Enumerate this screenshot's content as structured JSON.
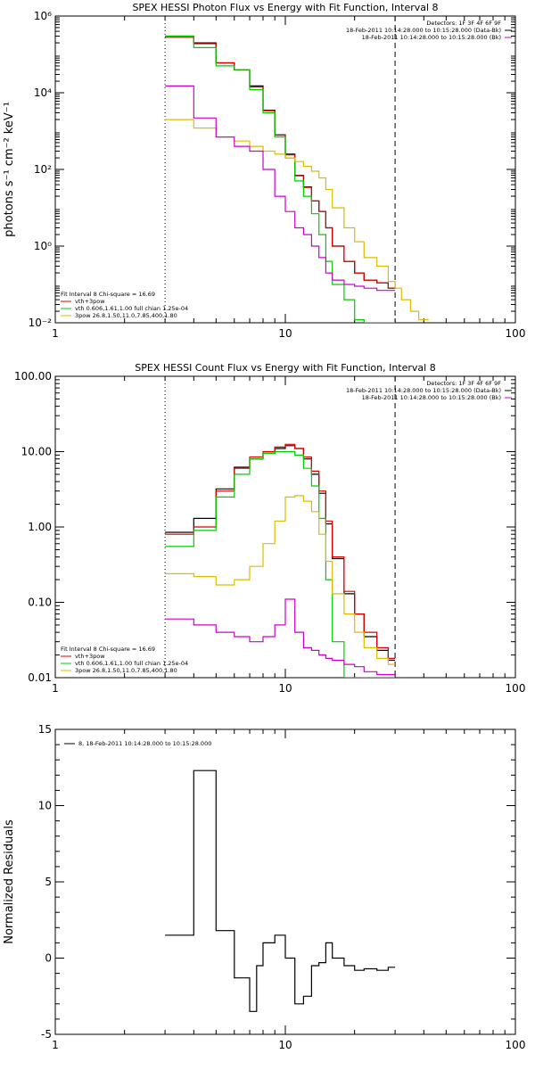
{
  "chart_data": [
    {
      "type": "line",
      "title": "SPEX HESSI Photon Flux vs Energy with Fit Function, Interval 8",
      "ylabel": "photons s⁻¹ cm⁻² keV⁻¹",
      "xlabel": "",
      "xscale": "log",
      "yscale": "log",
      "xlim": [
        1,
        100
      ],
      "ylim": [
        0.01,
        1000000
      ],
      "xticks": [
        {
          "v": 1,
          "label": "1"
        },
        {
          "v": 10,
          "label": "10"
        },
        {
          "v": 100,
          "label": "100"
        }
      ],
      "yticks": [
        {
          "v": 0.01,
          "label": "10⁻²"
        },
        {
          "v": 1,
          "label": "10⁰"
        },
        {
          "v": 100,
          "label": "10²"
        },
        {
          "v": 10000,
          "label": "10⁴"
        },
        {
          "v": 1000000,
          "label": "10⁶"
        }
      ],
      "vlines": [
        {
          "x": 3,
          "style": "dotted"
        },
        {
          "x": 30,
          "style": "dashed"
        }
      ],
      "legend_topright": {
        "lines": [
          {
            "text": "Detectors: 1F 3F 4F 6F 9F",
            "color": "#000000"
          },
          {
            "text": "18-Feb-2011 10:14:28.000 to 10:15:28.000 (Data-Bk)",
            "color": "#000000"
          },
          {
            "text": "18-Feb-2011 10:14:28.000 to 10:15:28.000 (Bk)",
            "color": "#cc00cc"
          }
        ]
      },
      "legend_bottomleft": {
        "header": "Fit Interval  8    Chi-square = 16.69",
        "entries": [
          {
            "text": "vth+3pow",
            "color": "#dd0000"
          },
          {
            "text": "vth 0.606,1.61,1.00  full chian 1.25e-04",
            "color": "#00cc00"
          },
          {
            "text": "3pow  26.8,1.50,11.0,7.85,400,1.80",
            "color": "#ddbb00"
          }
        ]
      },
      "series": [
        {
          "color": "#000000",
          "bins": [
            3,
            4,
            5,
            6,
            7,
            8,
            9,
            10,
            11,
            12,
            13,
            14,
            15,
            16,
            18,
            20,
            22,
            25,
            28,
            30
          ],
          "values": [
            300000,
            200000,
            60000,
            40000,
            15000,
            3500,
            800,
            250,
            70,
            35,
            15,
            8,
            3,
            1,
            0.4,
            0.2,
            0.13,
            0.11,
            0.08
          ]
        },
        {
          "color": "#dd0000",
          "bins": [
            3,
            4,
            5,
            6,
            7,
            8,
            9,
            10,
            11,
            12,
            13,
            14,
            15,
            16,
            18,
            20,
            22,
            25,
            28,
            30
          ],
          "values": [
            280000,
            190000,
            60000,
            40000,
            14000,
            3400,
            780,
            240,
            68,
            34,
            15,
            8,
            3,
            1,
            0.4,
            0.2,
            0.13,
            0.11,
            0.08
          ]
        },
        {
          "color": "#00cc00",
          "bins": [
            3,
            4,
            5,
            6,
            7,
            8,
            9,
            10,
            11,
            12,
            13,
            14,
            15,
            16,
            18,
            20,
            22,
            25,
            28,
            30
          ],
          "values": [
            300000,
            150000,
            50000,
            40000,
            12000,
            3000,
            700,
            200,
            50,
            20,
            7,
            2,
            0.4,
            0.1,
            0.04,
            0.012,
            0.01,
            0.01,
            0.01
          ]
        },
        {
          "color": "#ddbb00",
          "bins": [
            3,
            4,
            5,
            6,
            7,
            8,
            9,
            10,
            11,
            12,
            13,
            14,
            15,
            16,
            18,
            20,
            22,
            25,
            28,
            30,
            32,
            35,
            38,
            42
          ],
          "values": [
            2000,
            1200,
            700,
            550,
            400,
            300,
            250,
            200,
            160,
            120,
            90,
            60,
            30,
            10,
            3,
            1.3,
            0.5,
            0.3,
            0.12,
            0.08,
            0.04,
            0.02,
            0.012
          ]
        },
        {
          "color": "#cc00cc",
          "bins": [
            3,
            4,
            5,
            6,
            7,
            8,
            9,
            10,
            11,
            12,
            13,
            14,
            15,
            16,
            18,
            20,
            22,
            25,
            28,
            30
          ],
          "values": [
            15000,
            2200,
            700,
            400,
            300,
            100,
            20,
            8,
            3,
            2,
            1,
            0.5,
            0.2,
            0.13,
            0.1,
            0.09,
            0.08,
            0.07,
            0.07
          ]
        }
      ]
    },
    {
      "type": "line",
      "title": "SPEX HESSI Count Flux vs Energy with Fit Function, Interval 8",
      "ylabel": "",
      "xlabel": "",
      "xscale": "log",
      "yscale": "log",
      "xlim": [
        1,
        100
      ],
      "ylim": [
        0.01,
        100
      ],
      "xticks": [
        {
          "v": 1,
          "label": "1"
        },
        {
          "v": 10,
          "label": "10"
        },
        {
          "v": 100,
          "label": "100"
        }
      ],
      "yticks": [
        {
          "v": 0.01,
          "label": "0.01"
        },
        {
          "v": 0.1,
          "label": "0.10"
        },
        {
          "v": 1,
          "label": "1.00"
        },
        {
          "v": 10,
          "label": "10.00"
        },
        {
          "v": 100,
          "label": "100.00"
        }
      ],
      "vlines": [
        {
          "x": 3,
          "style": "dotted"
        },
        {
          "x": 30,
          "style": "dashed"
        }
      ],
      "legend_topright": {
        "lines": [
          {
            "text": "Detectors: 1F 3F 4F 6F 9F",
            "color": "#000000"
          },
          {
            "text": "18-Feb-2011 10:14:28.000 to 10:15:28.000 (Data-Bk)",
            "color": "#000000"
          },
          {
            "text": "18-Feb-2011 10:14:28.000 to 10:15:28.000 (Bk)",
            "color": "#cc00cc"
          }
        ]
      },
      "legend_bottomleft": {
        "header": "Fit Interval  8    Chi-square = 16.69",
        "entries": [
          {
            "text": "vth+3pow",
            "color": "#dd0000"
          },
          {
            "text": "vth 0.606,1.61,1.00  full chian 1.25e-04",
            "color": "#00cc00"
          },
          {
            "text": "3pow  26.8,1.50,11.0,7.85,400,1.80",
            "color": "#ddbb00"
          }
        ]
      },
      "series": [
        {
          "color": "#000000",
          "bins": [
            3,
            4,
            5,
            6,
            7,
            8,
            9,
            10,
            11,
            12,
            13,
            14,
            15,
            16,
            18,
            20,
            22,
            25,
            28,
            30
          ],
          "values": [
            0.85,
            1.3,
            3.2,
            6.2,
            8,
            9.5,
            11,
            12,
            11,
            8,
            5,
            2.8,
            1.1,
            0.38,
            0.13,
            0.07,
            0.035,
            0.023,
            0.017
          ]
        },
        {
          "color": "#dd0000",
          "bins": [
            3,
            4,
            5,
            6,
            7,
            8,
            9,
            10,
            11,
            12,
            13,
            14,
            15,
            16,
            18,
            20,
            22,
            25,
            28,
            30
          ],
          "values": [
            0.8,
            1.0,
            3.0,
            6.0,
            8.5,
            10,
            11.5,
            12.5,
            11,
            8.5,
            5.5,
            3.0,
            1.2,
            0.4,
            0.14,
            0.07,
            0.04,
            0.025,
            0.018
          ]
        },
        {
          "color": "#00cc00",
          "bins": [
            3,
            4,
            5,
            6,
            7,
            8,
            9,
            10,
            11,
            12,
            13,
            14,
            15,
            16,
            18,
            20,
            22,
            25,
            28,
            30
          ],
          "values": [
            0.55,
            0.9,
            2.5,
            5,
            8,
            9.5,
            10,
            10,
            9,
            6,
            3.5,
            1.3,
            0.2,
            0.03,
            0.01,
            0.01,
            0.01,
            0.01,
            0.01
          ]
        },
        {
          "color": "#ddbb00",
          "bins": [
            3,
            4,
            5,
            6,
            7,
            8,
            9,
            10,
            11,
            12,
            13,
            14,
            15,
            16,
            18,
            20,
            22,
            25,
            28,
            30
          ],
          "values": [
            0.24,
            0.22,
            0.17,
            0.2,
            0.3,
            0.6,
            1.2,
            2.5,
            2.6,
            2.2,
            1.6,
            0.8,
            0.35,
            0.13,
            0.07,
            0.04,
            0.025,
            0.018,
            0.015
          ]
        },
        {
          "color": "#cc00cc",
          "bins": [
            3,
            4,
            5,
            6,
            7,
            8,
            9,
            10,
            11,
            12,
            13,
            14,
            15,
            16,
            18,
            20,
            22,
            25,
            28,
            30
          ],
          "values": [
            0.06,
            0.05,
            0.04,
            0.035,
            0.03,
            0.035,
            0.05,
            0.11,
            0.04,
            0.025,
            0.023,
            0.02,
            0.018,
            0.017,
            0.015,
            0.014,
            0.012,
            0.011,
            0.011
          ]
        }
      ]
    },
    {
      "type": "line",
      "title": "",
      "ylabel": "Normalized Residuals",
      "xlabel": "",
      "xscale": "log",
      "yscale": "linear",
      "xlim": [
        1,
        100
      ],
      "ylim": [
        -5,
        15
      ],
      "xticks": [
        {
          "v": 1,
          "label": "1"
        },
        {
          "v": 10,
          "label": "10"
        },
        {
          "v": 100,
          "label": "100"
        }
      ],
      "yticks": [
        {
          "v": -5,
          "label": "-5"
        },
        {
          "v": 0,
          "label": "0"
        },
        {
          "v": 5,
          "label": "5"
        },
        {
          "v": 10,
          "label": "10"
        },
        {
          "v": 15,
          "label": "15"
        }
      ],
      "legend_topleft": {
        "entries": [
          {
            "text": "8, 18-Feb-2011 10:14:28.000 to 10:15:28.000",
            "color": "#000000"
          }
        ]
      },
      "series": [
        {
          "color": "#000000",
          "bins": [
            3,
            4,
            5,
            6,
            7,
            7.5,
            8,
            9,
            10,
            11,
            12,
            13,
            14,
            15,
            16,
            18,
            20,
            22,
            25,
            28,
            30
          ],
          "values": [
            1.5,
            12.3,
            1.8,
            -1.3,
            -3.5,
            -0.5,
            1,
            1.5,
            0,
            -3,
            -2.5,
            -0.5,
            -0.3,
            1,
            0,
            -0.5,
            -0.8,
            -0.7,
            -0.8,
            -0.6
          ]
        }
      ]
    }
  ]
}
